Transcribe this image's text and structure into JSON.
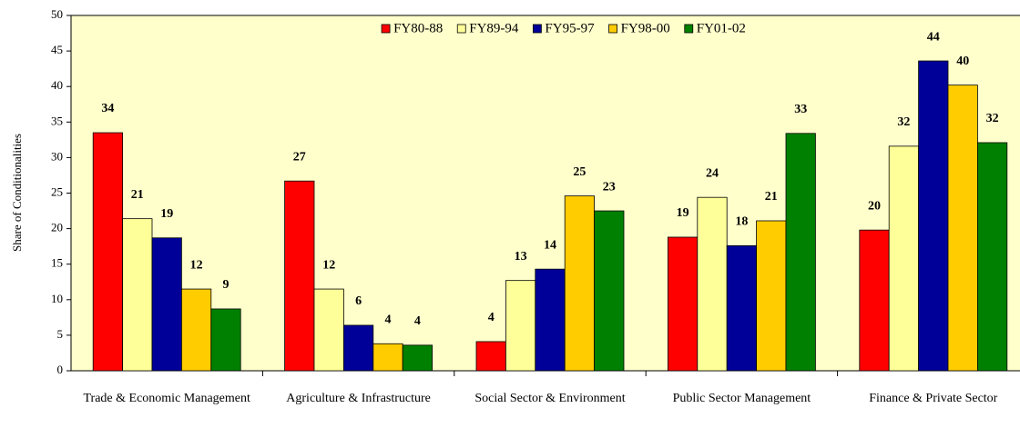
{
  "chart_data": {
    "type": "bar",
    "y_label": "Share of Conditionalities",
    "categories": [
      "Trade & Economic Management",
      "Agriculture & Infrastructure",
      "Social Sector & Environment",
      "Public Sector Management",
      "Finance & Private Sector"
    ],
    "series": [
      {
        "name": "FY80-88",
        "color": "#ff0000",
        "values": [
          33.5,
          26.7,
          4.1,
          18.8,
          19.8
        ],
        "value_labels": [
          "34",
          "27",
          "4",
          "19",
          "20"
        ]
      },
      {
        "name": "FY89-94",
        "color": "#ffff99",
        "values": [
          21.4,
          11.5,
          12.7,
          24.4,
          31.6
        ],
        "value_labels": [
          "21",
          "12",
          "13",
          "24",
          "32"
        ]
      },
      {
        "name": "FY95-97",
        "color": "#000099",
        "values": [
          18.7,
          6.4,
          14.3,
          17.6,
          43.6
        ],
        "value_labels": [
          "19",
          "6",
          "14",
          "18",
          "44"
        ]
      },
      {
        "name": "FY98-00",
        "color": "#ffcc00",
        "values": [
          11.5,
          3.8,
          24.6,
          21.1,
          40.2
        ],
        "value_labels": [
          "12",
          "4",
          "25",
          "21",
          "40"
        ]
      },
      {
        "name": "FY01-02",
        "color": "#008000",
        "values": [
          8.7,
          3.6,
          22.5,
          33.4,
          32.1
        ],
        "value_labels": [
          "9",
          "4",
          "23",
          "33",
          "32"
        ]
      }
    ],
    "ylim": [
      0,
      50
    ],
    "yticks": [
      0,
      5,
      10,
      15,
      20,
      25,
      30,
      35,
      40,
      45,
      50
    ],
    "legend": "upper center",
    "plot_background": "#ffffcc"
  }
}
